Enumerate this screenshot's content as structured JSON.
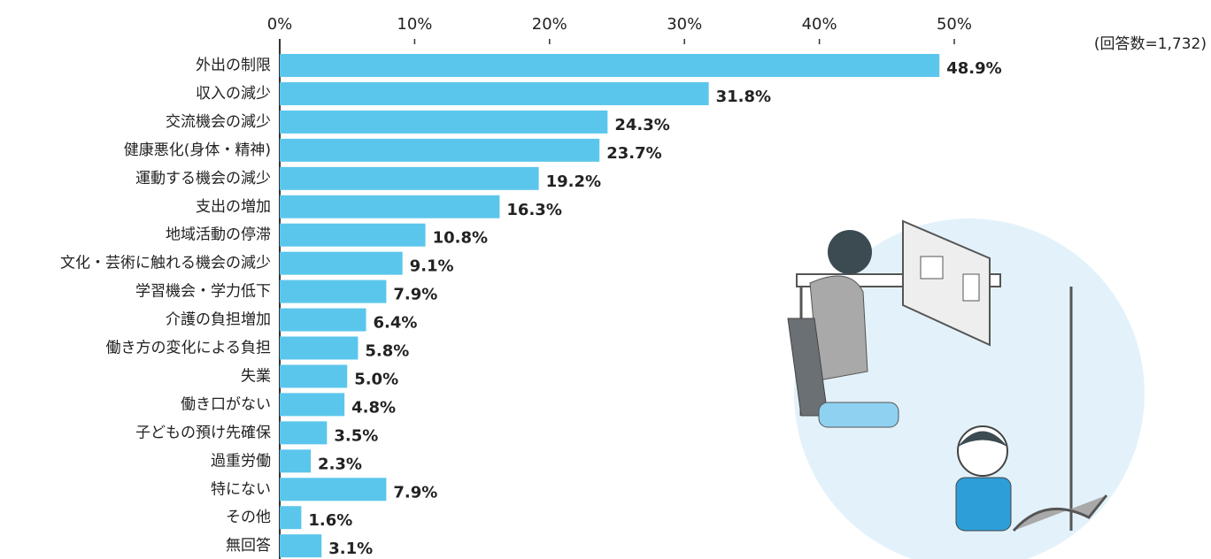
{
  "chart_data": {
    "type": "bar",
    "orientation": "horizontal",
    "annotation": "(回答数=1,732)",
    "categories": [
      "外出の制限",
      "収入の減少",
      "交流機会の減少",
      "健康悪化(身体・精神)",
      "運動する機会の減少",
      "支出の増加",
      "地域活動の停滞",
      "文化・芸術に触れる機会の減少",
      "学習機会・学力低下",
      "介護の負担増加",
      "働き方の変化による負担",
      "失業",
      "働き口がない",
      "子どもの預け先確保",
      "過重労働",
      "特にない",
      "その他",
      "無回答"
    ],
    "values": [
      48.9,
      31.8,
      24.3,
      23.7,
      19.2,
      16.3,
      10.8,
      9.1,
      7.9,
      6.4,
      5.8,
      5.0,
      4.8,
      3.5,
      2.3,
      7.9,
      1.6,
      3.1
    ],
    "value_labels": [
      "48.9%",
      "31.8%",
      "24.3%",
      "23.7%",
      "19.2%",
      "16.3%",
      "10.8%",
      "9.1%",
      "7.9%",
      "6.4%",
      "5.8%",
      "5.0%",
      "4.8%",
      "3.5%",
      "2.3%",
      "7.9%",
      "1.6%",
      "3.1%"
    ],
    "color": "#5bc6ec",
    "xlim": [
      0,
      50
    ],
    "xticks": [
      {
        "value": 0,
        "label": "0%"
      },
      {
        "value": 10,
        "label": "10%"
      },
      {
        "value": 20,
        "label": "20%"
      },
      {
        "value": 30,
        "label": "30%"
      },
      {
        "value": 40,
        "label": "40%"
      },
      {
        "value": 50,
        "label": "50%"
      }
    ]
  }
}
